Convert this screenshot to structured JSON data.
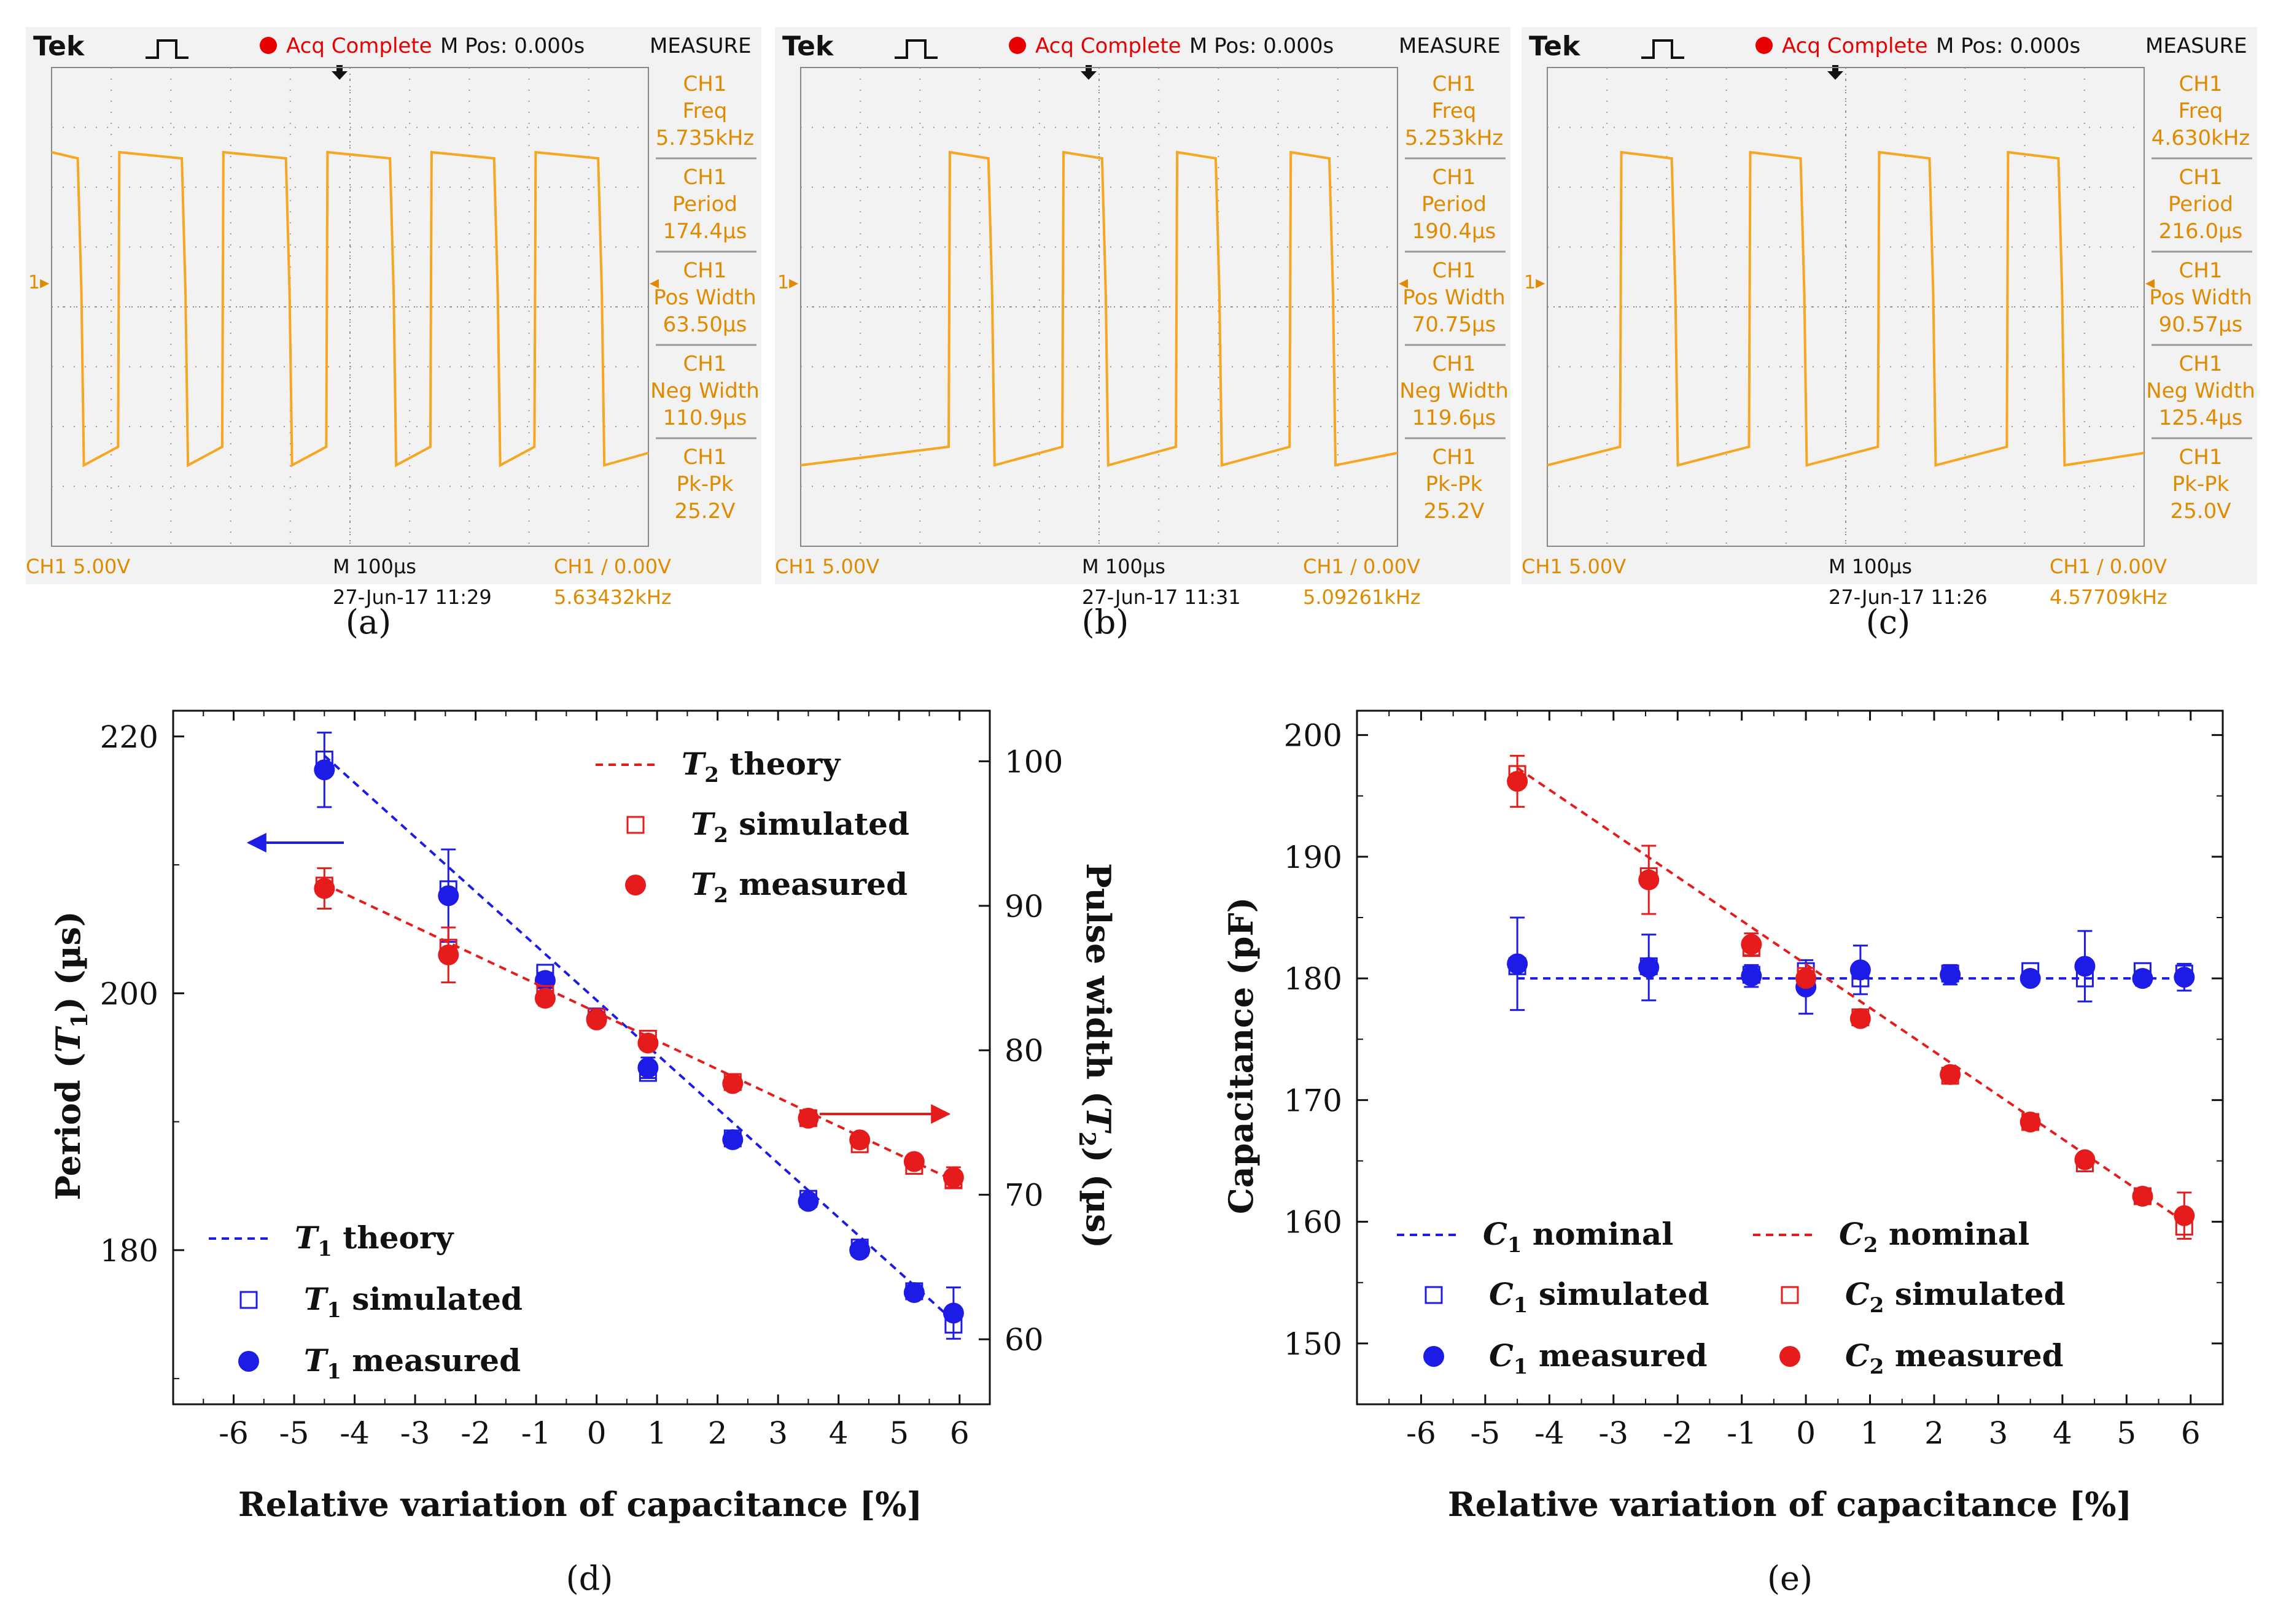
{
  "scopes": [
    {
      "panel_label": "(a)",
      "brand": "Tek",
      "status": "Acq Complete",
      "mpos": "M Pos: 0.000s",
      "measure_title": "MEASURE",
      "measures": [
        {
          "ch": "CH1",
          "name": "Freq",
          "value": "5.735kHz"
        },
        {
          "ch": "CH1",
          "name": "Period",
          "value": "174.4µs"
        },
        {
          "ch": "CH1",
          "name": "Pos Width",
          "value": "63.50µs"
        },
        {
          "ch": "CH1",
          "name": "Neg Width",
          "value": "110.9µs"
        },
        {
          "ch": "CH1",
          "name": "Pk-Pk",
          "value": "25.2V"
        }
      ],
      "ch_scale": "CH1  5.00V",
      "timebase": "M 100µs",
      "trigger": "CH1 ∕ 0.00V",
      "datetime": "27-Jun-17 11:29",
      "freq_readout": "5.63432kHz",
      "period_us": 174.4,
      "pos_width_us": 63.5,
      "edges_us": [
        50,
        113.5,
        224.4,
        287.9,
        398.8,
        462.3,
        573.2,
        636.7,
        747.6,
        811.1,
        922
      ]
    },
    {
      "panel_label": "(b)",
      "brand": "Tek",
      "status": "Acq Complete",
      "mpos": "M Pos: 0.000s",
      "measure_title": "MEASURE",
      "measures": [
        {
          "ch": "CH1",
          "name": "Freq",
          "value": "5.253kHz"
        },
        {
          "ch": "CH1",
          "name": "Period",
          "value": "190.4µs"
        },
        {
          "ch": "CH1",
          "name": "Pos Width",
          "value": "70.75µs"
        },
        {
          "ch": "CH1",
          "name": "Neg Width",
          "value": "119.6µs"
        },
        {
          "ch": "CH1",
          "name": "Pk-Pk",
          "value": "25.2V"
        }
      ],
      "ch_scale": "CH1  5.00V",
      "timebase": "M 100µs",
      "trigger": "CH1 ∕ 0.00V",
      "datetime": "27-Jun-17 11:31",
      "freq_readout": "5.09261kHz",
      "period_us": 190.4,
      "pos_width_us": 70.75,
      "edges_us": [
        250,
        320.75,
        440.4,
        511.15,
        630.8,
        701.55,
        821.2,
        891.95
      ]
    },
    {
      "panel_label": "(c)",
      "brand": "Tek",
      "status": "Acq Complete",
      "mpos": "M Pos: 0.000s",
      "measure_title": "MEASURE",
      "measures": [
        {
          "ch": "CH1",
          "name": "Freq",
          "value": "4.630kHz"
        },
        {
          "ch": "CH1",
          "name": "Period",
          "value": "216.0µs"
        },
        {
          "ch": "CH1",
          "name": "Pos Width",
          "value": "90.57µs"
        },
        {
          "ch": "CH1",
          "name": "Neg Width",
          "value": "125.4µs"
        },
        {
          "ch": "CH1",
          "name": "Pk-Pk",
          "value": "25.0V"
        }
      ],
      "ch_scale": "CH1  5.00V",
      "timebase": "M 100µs",
      "trigger": "CH1 ∕ 0.00V",
      "datetime": "27-Jun-17 11:26",
      "freq_readout": "4.57709kHz",
      "period_us": 216.0,
      "pos_width_us": 90.57,
      "edges_us": [
        124,
        214.57,
        340,
        430.57,
        556,
        646.57,
        772,
        862.57
      ]
    }
  ],
  "chart_data": [
    {
      "panel_label": "(d)",
      "type": "scatter",
      "xlabel": "Relative variation of capacitance [%]",
      "ylabel_left": "Period (T1) (µs)",
      "ylabel_right": "Pulse width (T2) (µs)",
      "xlim": [
        -7,
        6.5
      ],
      "ylim_left": [
        168,
        222
      ],
      "ylim_right": [
        55.5,
        103.5
      ],
      "xticks": [
        -6,
        -5,
        -4,
        -3,
        -2,
        -1,
        0,
        1,
        2,
        3,
        4,
        5,
        6
      ],
      "yticks_left": [
        180,
        200,
        220
      ],
      "yticks_right": [
        60,
        70,
        80,
        90,
        100
      ],
      "x": [
        -4.5,
        -2.45,
        -0.85,
        0,
        0.85,
        2.25,
        3.5,
        4.35,
        5.25,
        5.9
      ],
      "series": [
        {
          "name": "T1 theory",
          "axis": "left",
          "style": "dashed",
          "color": "#1c1ce6",
          "x": [
            -4.5,
            5.9
          ],
          "values": [
            218.5,
            174.5
          ]
        },
        {
          "name": "T1 simulated",
          "axis": "left",
          "marker": "open-square",
          "color": "#1c1ce6",
          "values": [
            218.2,
            208.1,
            201.6,
            198.2,
            193.8,
            188.7,
            184.0,
            180.2,
            176.8,
            174.2
          ]
        },
        {
          "name": "T1 measured",
          "axis": "left",
          "marker": "filled-circle",
          "color": "#1c1ce6",
          "values": [
            217.4,
            207.6,
            201.0,
            198.0,
            194.2,
            188.6,
            183.8,
            180.0,
            176.7,
            175.1
          ],
          "errors": [
            2.9,
            3.6,
            0.6,
            0.4,
            0.8,
            0.4,
            0.5,
            0.5,
            0.5,
            2.0
          ]
        },
        {
          "name": "T2 theory",
          "axis": "right",
          "style": "dashed",
          "color": "#e61c1c",
          "x": [
            -4.5,
            5.9
          ],
          "values": [
            91.5,
            71.0
          ]
        },
        {
          "name": "T2 simulated",
          "axis": "right",
          "marker": "open-square",
          "color": "#e61c1c",
          "values": [
            91.4,
            87.1,
            83.9,
            82.3,
            80.8,
            77.8,
            75.3,
            73.5,
            72.0,
            71.0
          ]
        },
        {
          "name": "T2 measured",
          "axis": "right",
          "marker": "filled-circle",
          "color": "#e61c1c",
          "values": [
            91.2,
            86.6,
            83.6,
            82.1,
            80.5,
            77.7,
            75.3,
            73.8,
            72.3,
            71.2
          ],
          "errors": [
            1.4,
            1.9,
            0.5,
            0.4,
            0.4,
            0.4,
            0.4,
            0.4,
            0.4,
            0.7
          ]
        }
      ],
      "legend": {
        "T2_theory": {
          "var": "T",
          "sub": "2",
          "text": "theory"
        },
        "T2_simulated": {
          "var": "T",
          "sub": "2",
          "text": "simulated"
        },
        "T2_measured": {
          "var": "T",
          "sub": "2",
          "text": "measured"
        },
        "T1_theory": {
          "var": "T",
          "sub": "1",
          "text": "theory"
        },
        "T1_simulated": {
          "var": "T",
          "sub": "1",
          "text": "simulated"
        },
        "T1_measured": {
          "var": "T",
          "sub": "1",
          "text": "measured"
        }
      },
      "annotations": [
        "arrow left toward T1 axis",
        "arrow right toward T2 axis"
      ]
    },
    {
      "panel_label": "(e)",
      "type": "scatter",
      "xlabel": "Relative variation of capacitance [%]",
      "ylabel": "Capacitance (pF)",
      "xlim": [
        -7,
        6.5
      ],
      "ylim": [
        145,
        202
      ],
      "xticks": [
        -6,
        -5,
        -4,
        -3,
        -2,
        -1,
        0,
        1,
        2,
        3,
        4,
        5,
        6
      ],
      "yticks": [
        150,
        160,
        170,
        180,
        190,
        200
      ],
      "x": [
        -4.5,
        -2.45,
        -0.85,
        0,
        0.85,
        2.25,
        3.5,
        4.35,
        5.25,
        5.9
      ],
      "series": [
        {
          "name": "C1 nominal",
          "style": "dashed",
          "color": "#1c1ce6",
          "x": [
            -4.5,
            5.9
          ],
          "values": [
            180,
            180
          ]
        },
        {
          "name": "C1 simulated",
          "marker": "open-square",
          "color": "#1c1ce6",
          "values": [
            181.0,
            181.0,
            180.3,
            180.6,
            180.0,
            180.4,
            180.6,
            180.0,
            180.6,
            180.4
          ]
        },
        {
          "name": "C1 measured",
          "marker": "filled-circle",
          "color": "#1c1ce6",
          "values": [
            181.2,
            180.9,
            180.2,
            179.3,
            180.7,
            180.3,
            180.0,
            181.0,
            180.0,
            180.1
          ],
          "errors": [
            3.8,
            2.7,
            0.9,
            2.2,
            2.0,
            0.8,
            0.4,
            2.9,
            0.6,
            1.1
          ]
        },
        {
          "name": "C2 nominal",
          "style": "dashed",
          "color": "#e61c1c",
          "x": [
            -4.5,
            5.9
          ],
          "values": [
            197.3,
            160.0
          ]
        },
        {
          "name": "C2 simulated",
          "marker": "open-square",
          "color": "#e61c1c",
          "values": [
            196.8,
            188.4,
            182.5,
            180.2,
            176.8,
            172.0,
            168.2,
            164.8,
            162.1,
            159.6
          ]
        },
        {
          "name": "C2 measured",
          "marker": "filled-circle",
          "color": "#e61c1c",
          "values": [
            196.2,
            188.1,
            182.8,
            180.0,
            176.7,
            172.1,
            168.2,
            165.1,
            162.1,
            160.5
          ],
          "errors": [
            2.1,
            2.8,
            0.9,
            0.6,
            0.5,
            0.4,
            0.4,
            0.5,
            0.4,
            1.9
          ]
        }
      ],
      "legend": {
        "C1_nominal": {
          "var": "C",
          "sub": "1",
          "text": "nominal"
        },
        "C1_simulated": {
          "var": "C",
          "sub": "1",
          "text": "simulated"
        },
        "C1_measured": {
          "var": "C",
          "sub": "1",
          "text": "measured"
        },
        "C2_nominal": {
          "var": "C",
          "sub": "2",
          "text": "nominal"
        },
        "C2_simulated": {
          "var": "C",
          "sub": "2",
          "text": "simulated"
        },
        "C2_measured": {
          "var": "C",
          "sub": "2",
          "text": "measured"
        }
      }
    }
  ],
  "colors": {
    "trace": "#f5a623",
    "scope_text": "#e08a00",
    "scope_bg": "#f2f2f2",
    "grid": "#9a9a9a",
    "blue": "#1c1ce6",
    "red": "#e61c1c",
    "status_dot": "#e60000"
  }
}
